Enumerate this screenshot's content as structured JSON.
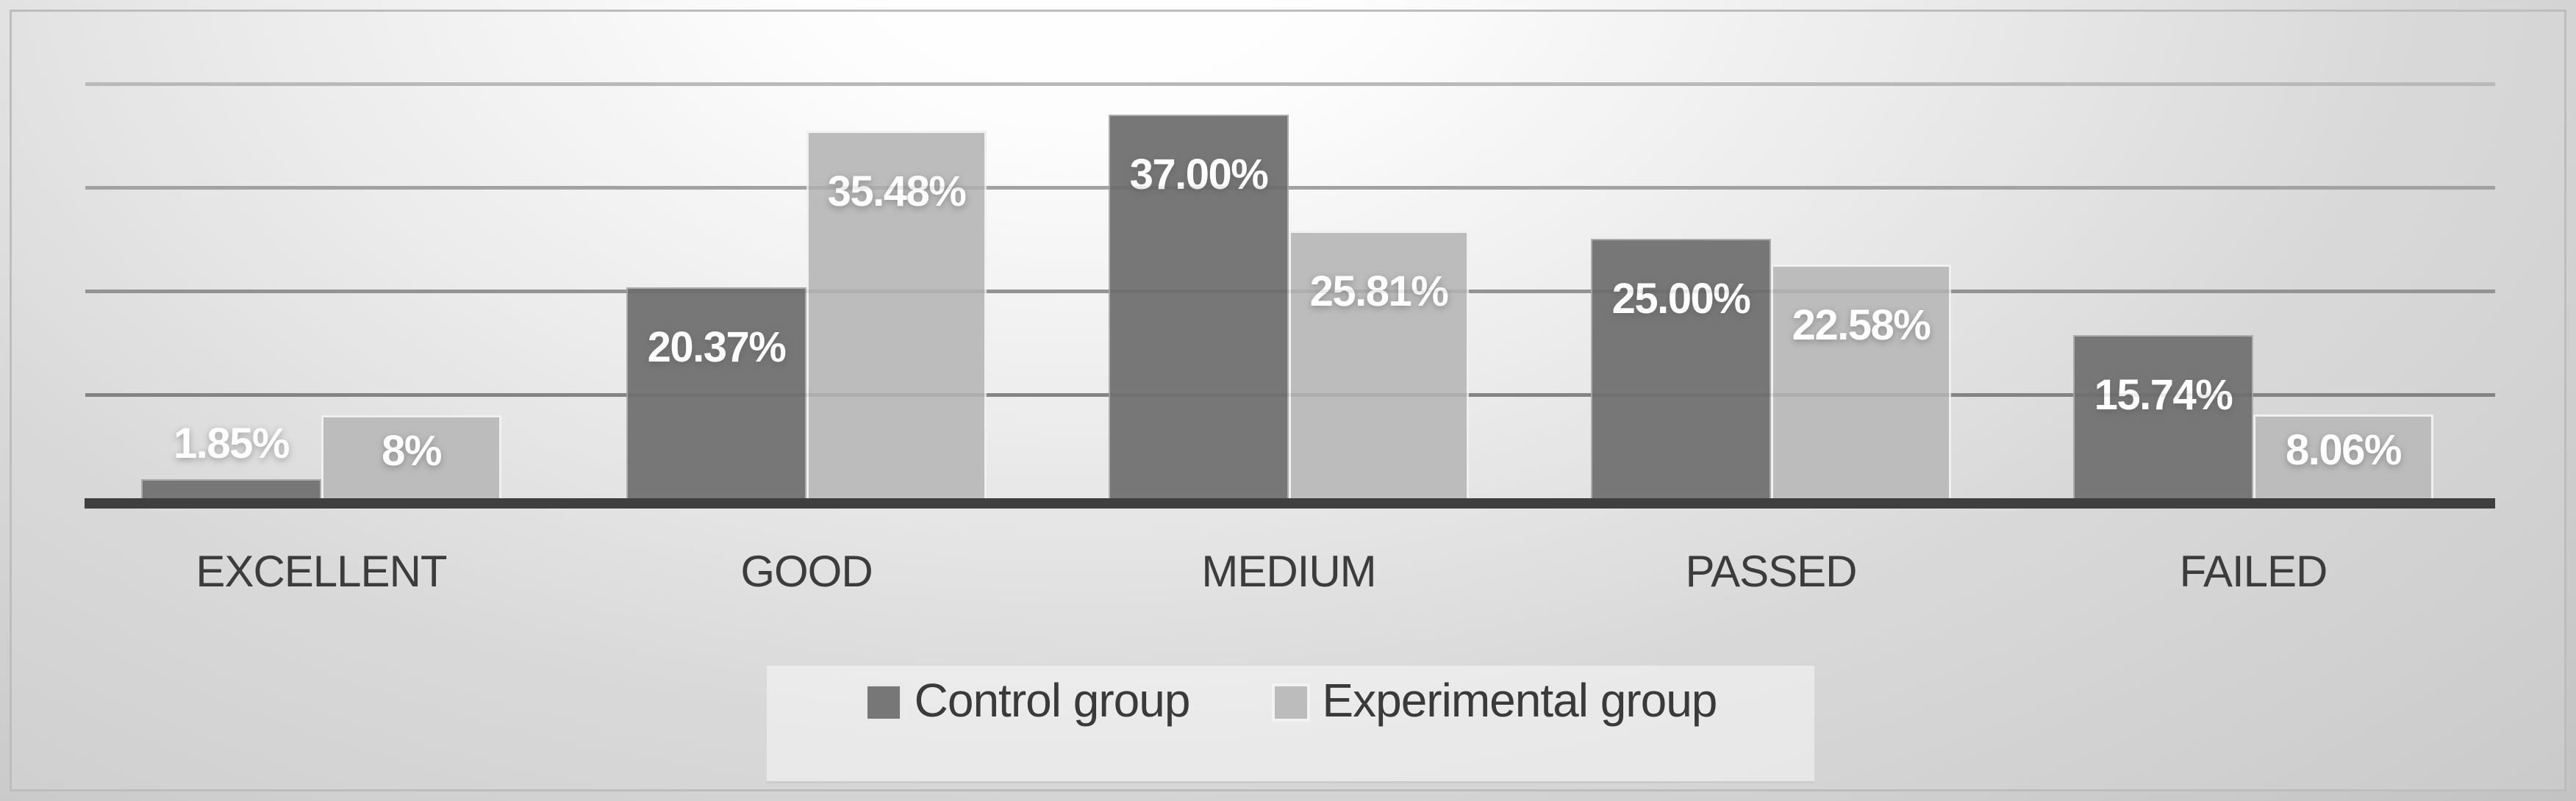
{
  "chart_data": {
    "type": "bar",
    "title": "",
    "xlabel": "",
    "ylabel": "",
    "categories": [
      "EXCELLENT",
      "GOOD",
      "MEDIUM",
      "PASSED",
      "FAILED"
    ],
    "series": [
      {
        "name": "Control group",
        "color": "#777777",
        "values": [
          1.85,
          20.37,
          37.0,
          25.0,
          15.74
        ],
        "labels": [
          "1.85%",
          "20.37%",
          "37.00%",
          "25.00%",
          "15.74%"
        ]
      },
      {
        "name": "Experimental group",
        "color": "#bcbcbc",
        "values": [
          8,
          35.48,
          25.81,
          22.58,
          8.06
        ],
        "labels": [
          "8%",
          "35.48%",
          "25.81%",
          "22.58%",
          "8.06%"
        ]
      }
    ],
    "ylim": [
      0,
      45
    ],
    "gridline_values": [
      10,
      20,
      30,
      40
    ],
    "gridline_colors": [
      "#8d8d8d",
      "#9d9d9d",
      "#aeaeae",
      "#c8c8c8"
    ],
    "grid": true,
    "legend_position": "bottom",
    "data_label_color": "#ffffff",
    "axis_line_color": "#3f3f3f",
    "category_label_color": "#3c3c3c"
  },
  "legend": {
    "items": [
      {
        "label": "Control group",
        "color": "#777777"
      },
      {
        "label": "Experimental group",
        "color": "#bcbcbc"
      }
    ]
  }
}
